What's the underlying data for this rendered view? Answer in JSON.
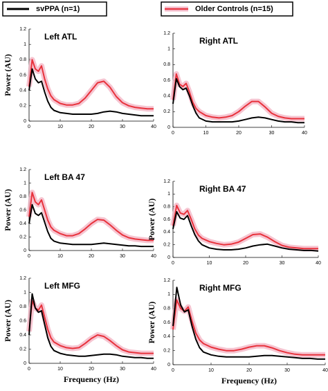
{
  "chart_data": [
    {
      "type": "line",
      "title": "Left ATL",
      "y_label": "Power (AU)",
      "x": [
        0,
        1,
        2,
        3,
        4,
        5,
        6,
        7,
        8,
        10,
        12,
        14,
        16,
        18,
        20,
        22,
        24,
        26,
        28,
        30,
        32,
        34,
        36,
        38,
        40
      ],
      "series": [
        {
          "name": "svPPA (n=1)",
          "color": "#000000",
          "values": [
            0.4,
            0.68,
            0.55,
            0.5,
            0.52,
            0.38,
            0.26,
            0.18,
            0.14,
            0.11,
            0.1,
            0.09,
            0.09,
            0.09,
            0.09,
            0.1,
            0.12,
            0.13,
            0.12,
            0.1,
            0.09,
            0.08,
            0.07,
            0.07,
            0.07
          ]
        },
        {
          "name": "Older Controls (n=15)",
          "color": "#e8323c",
          "values": [
            0.45,
            0.8,
            0.68,
            0.65,
            0.72,
            0.55,
            0.42,
            0.33,
            0.28,
            0.23,
            0.21,
            0.21,
            0.23,
            0.3,
            0.4,
            0.5,
            0.52,
            0.44,
            0.32,
            0.24,
            0.2,
            0.18,
            0.17,
            0.16,
            0.16
          ]
        }
      ],
      "xlim": [
        0,
        40
      ],
      "xticks": [
        0,
        10,
        20,
        30,
        40
      ],
      "ylim": [
        0,
        1.2
      ],
      "yticks": [
        0,
        0.2,
        0.4,
        0.6,
        0.8,
        1,
        1.2
      ]
    },
    {
      "type": "line",
      "title": "Right ATL",
      "x": [
        0,
        1,
        2,
        3,
        4,
        5,
        6,
        7,
        8,
        10,
        12,
        14,
        16,
        18,
        20,
        22,
        24,
        26,
        28,
        30,
        32,
        34,
        36,
        38,
        40
      ],
      "series": [
        {
          "color": "#000000",
          "values": [
            0.3,
            0.62,
            0.52,
            0.48,
            0.5,
            0.4,
            0.28,
            0.18,
            0.12,
            0.08,
            0.07,
            0.07,
            0.07,
            0.07,
            0.08,
            0.1,
            0.12,
            0.13,
            0.12,
            0.1,
            0.08,
            0.07,
            0.07,
            0.06,
            0.06
          ]
        },
        {
          "color": "#e8323c",
          "values": [
            0.35,
            0.68,
            0.55,
            0.52,
            0.56,
            0.45,
            0.32,
            0.24,
            0.2,
            0.15,
            0.13,
            0.12,
            0.13,
            0.15,
            0.2,
            0.27,
            0.33,
            0.33,
            0.26,
            0.18,
            0.14,
            0.12,
            0.11,
            0.11,
            0.11
          ]
        }
      ],
      "xlim": [
        0,
        40
      ],
      "xticks": [
        0,
        10,
        20,
        30,
        40
      ],
      "ylim": [
        0,
        1.2
      ],
      "yticks": [
        0,
        0.2,
        0.4,
        0.6,
        0.8,
        1,
        1.2
      ]
    },
    {
      "type": "line",
      "title": "Left BA 47",
      "y_label": "Power (AU)",
      "x": [
        0,
        1,
        2,
        3,
        4,
        5,
        6,
        7,
        8,
        10,
        12,
        14,
        16,
        18,
        20,
        22,
        24,
        26,
        28,
        30,
        32,
        34,
        36,
        38,
        40
      ],
      "series": [
        {
          "color": "#000000",
          "values": [
            0.4,
            0.68,
            0.55,
            0.52,
            0.56,
            0.42,
            0.28,
            0.18,
            0.14,
            0.11,
            0.1,
            0.09,
            0.09,
            0.09,
            0.09,
            0.1,
            0.11,
            0.1,
            0.09,
            0.08,
            0.07,
            0.07,
            0.06,
            0.06,
            0.06
          ]
        },
        {
          "color": "#e8323c",
          "values": [
            0.5,
            0.86,
            0.72,
            0.68,
            0.75,
            0.6,
            0.45,
            0.35,
            0.3,
            0.25,
            0.22,
            0.22,
            0.25,
            0.32,
            0.4,
            0.46,
            0.45,
            0.38,
            0.3,
            0.23,
            0.19,
            0.17,
            0.16,
            0.15,
            0.15
          ]
        }
      ],
      "xlim": [
        0,
        40
      ],
      "xticks": [
        0,
        10,
        20,
        30,
        40
      ],
      "ylim": [
        0,
        1.2
      ],
      "yticks": [
        0,
        0.2,
        0.4,
        0.6,
        0.8,
        1,
        1.2
      ]
    },
    {
      "type": "line",
      "title": "Right BA 47",
      "y_label": "Power (AU)",
      "x": [
        0,
        1,
        2,
        3,
        4,
        5,
        6,
        7,
        8,
        10,
        12,
        14,
        16,
        18,
        20,
        22,
        24,
        26,
        28,
        30,
        32,
        34,
        36,
        38,
        40
      ],
      "series": [
        {
          "color": "#000000",
          "values": [
            0.45,
            0.72,
            0.62,
            0.6,
            0.66,
            0.5,
            0.36,
            0.26,
            0.2,
            0.15,
            0.13,
            0.12,
            0.12,
            0.13,
            0.15,
            0.18,
            0.2,
            0.21,
            0.18,
            0.15,
            0.13,
            0.12,
            0.11,
            0.11,
            0.1
          ]
        },
        {
          "color": "#e8323c",
          "values": [
            0.5,
            0.82,
            0.7,
            0.68,
            0.74,
            0.6,
            0.45,
            0.35,
            0.3,
            0.25,
            0.22,
            0.2,
            0.21,
            0.24,
            0.3,
            0.36,
            0.37,
            0.32,
            0.25,
            0.19,
            0.16,
            0.15,
            0.14,
            0.14,
            0.14
          ]
        }
      ],
      "xlim": [
        0,
        40
      ],
      "xticks": [
        0,
        10,
        20,
        30,
        40
      ],
      "ylim": [
        0,
        1.2
      ],
      "yticks": [
        0,
        0.2,
        0.4,
        0.6,
        0.8,
        1,
        1.2
      ]
    },
    {
      "type": "line",
      "title": "Left MFG",
      "y_label": "Power (AU)",
      "x_label": "Frequency (Hz)",
      "x": [
        0,
        1,
        2,
        3,
        4,
        5,
        6,
        7,
        8,
        10,
        12,
        14,
        16,
        18,
        20,
        22,
        24,
        26,
        28,
        30,
        32,
        34,
        36,
        38,
        40
      ],
      "series": [
        {
          "color": "#000000",
          "values": [
            0.4,
            0.98,
            0.78,
            0.72,
            0.74,
            0.55,
            0.36,
            0.24,
            0.18,
            0.14,
            0.12,
            0.11,
            0.1,
            0.1,
            0.11,
            0.12,
            0.13,
            0.13,
            0.12,
            0.1,
            0.09,
            0.08,
            0.08,
            0.07,
            0.07
          ]
        },
        {
          "color": "#e8323c",
          "values": [
            0.45,
            0.88,
            0.78,
            0.75,
            0.82,
            0.65,
            0.48,
            0.36,
            0.3,
            0.25,
            0.22,
            0.21,
            0.22,
            0.28,
            0.35,
            0.4,
            0.38,
            0.32,
            0.25,
            0.19,
            0.16,
            0.15,
            0.14,
            0.14,
            0.14
          ]
        }
      ],
      "xlim": [
        0,
        40
      ],
      "xticks": [
        0,
        10,
        20,
        30,
        40
      ],
      "ylim": [
        0,
        1.2
      ],
      "yticks": [
        0,
        0.2,
        0.4,
        0.6,
        0.8,
        1,
        1.2
      ]
    },
    {
      "type": "line",
      "title": "Right MFG",
      "y_label": "Power (AU)",
      "x_label": "Frequency (Hz)",
      "x": [
        0,
        1,
        2,
        3,
        4,
        5,
        6,
        7,
        8,
        10,
        12,
        14,
        16,
        18,
        20,
        22,
        24,
        26,
        28,
        30,
        32,
        34,
        36,
        38,
        40
      ],
      "series": [
        {
          "color": "#000000",
          "values": [
            0.55,
            1.1,
            0.85,
            0.75,
            0.78,
            0.55,
            0.36,
            0.24,
            0.18,
            0.14,
            0.12,
            0.11,
            0.11,
            0.11,
            0.11,
            0.12,
            0.13,
            0.13,
            0.12,
            0.11,
            0.1,
            0.09,
            0.09,
            0.08,
            0.08
          ]
        },
        {
          "color": "#e8323c",
          "values": [
            0.5,
            0.92,
            0.8,
            0.76,
            0.82,
            0.62,
            0.45,
            0.35,
            0.3,
            0.25,
            0.22,
            0.2,
            0.2,
            0.22,
            0.25,
            0.27,
            0.27,
            0.24,
            0.2,
            0.17,
            0.15,
            0.14,
            0.14,
            0.14,
            0.14
          ]
        }
      ],
      "xlim": [
        0,
        40
      ],
      "xticks": [
        0,
        10,
        20,
        30,
        40
      ],
      "ylim": [
        0,
        1.2
      ],
      "yticks": [
        0,
        0.2,
        0.4,
        0.6,
        0.8,
        1,
        1.2
      ]
    }
  ]
}
